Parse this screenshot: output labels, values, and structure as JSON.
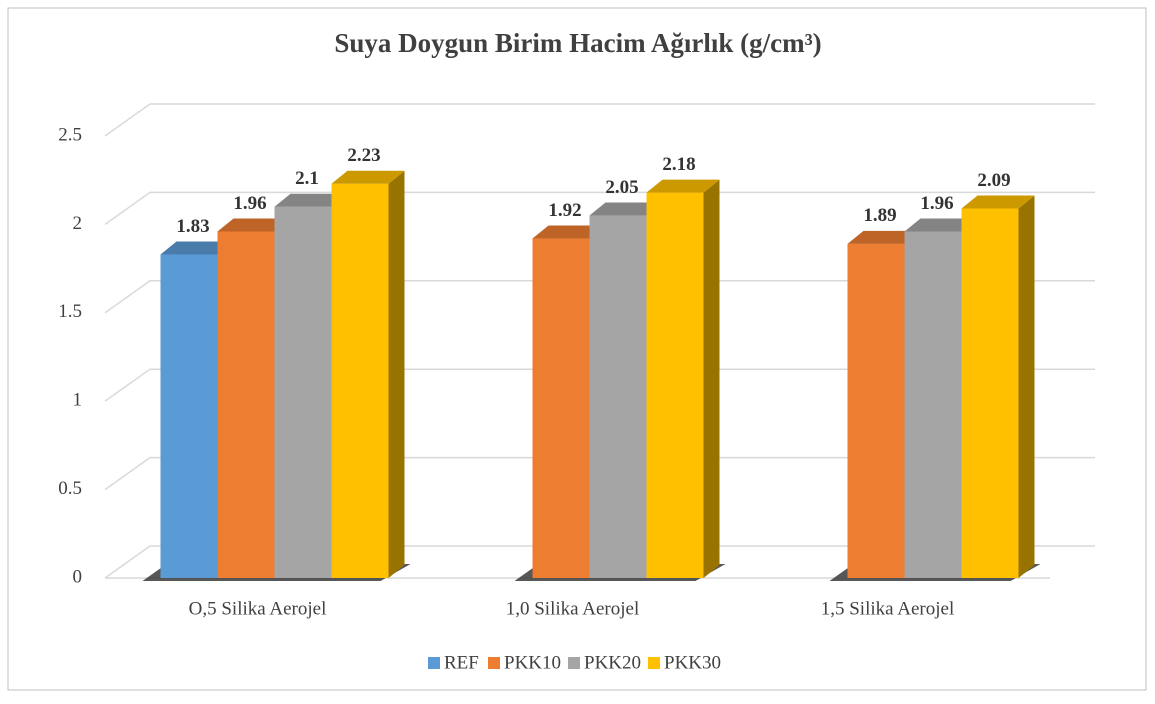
{
  "chart_data": {
    "type": "bar3d",
    "title": "Suya Doygun Birim Hacim Ağırlık (g/cm³)",
    "categories": [
      "O,5 Silika Aerojel",
      "1,0 Silika Aerojel",
      "1,5 Silika Aerojel"
    ],
    "series": [
      {
        "name": "REF",
        "color": "#5b9bd5",
        "values": [
          1.83,
          null,
          null
        ]
      },
      {
        "name": "PKK10",
        "color": "#ed7d31",
        "values": [
          1.96,
          1.92,
          1.89
        ]
      },
      {
        "name": "PKK20",
        "color": "#a5a5a5",
        "values": [
          2.1,
          2.05,
          1.96
        ]
      },
      {
        "name": "PKK30",
        "color": "#ffc000",
        "values": [
          2.23,
          2.18,
          2.09
        ]
      }
    ],
    "ylim": [
      0,
      2.5
    ],
    "yticks": [
      0,
      0.5,
      1,
      1.5,
      2,
      2.5
    ],
    "grid": true,
    "legend": "bottom"
  }
}
